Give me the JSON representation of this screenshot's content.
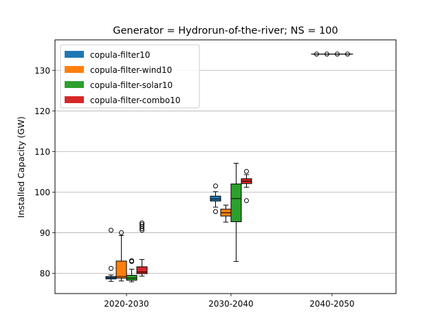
{
  "chart_data": {
    "type": "box",
    "title": "Generator = Hydrorun-of-the-river; NS = 100",
    "xlabel": "",
    "ylabel": "Installed Capacity (GW)",
    "ylim": [
      75,
      137.5
    ],
    "yticks": [
      80,
      90,
      100,
      110,
      120,
      130
    ],
    "grid": "horizontal",
    "legend_position": "top-left",
    "categories": [
      "2020-2030",
      "2030-2040",
      "2040-2050"
    ],
    "series": [
      {
        "name": "copula-filter10",
        "color": "#1f77b4",
        "boxes": [
          {
            "whisker_low": 78.0,
            "q1": 78.6,
            "median": 78.9,
            "q3": 79.2,
            "whisker_high": 79.6,
            "outliers": [
              81.2,
              90.6
            ]
          },
          {
            "whisker_low": 96.3,
            "q1": 97.8,
            "median": 98.3,
            "q3": 99.0,
            "whisker_high": 100.1,
            "outliers": [
              95.2,
              101.5
            ]
          },
          {
            "whisker_low": 134.0,
            "q1": 134.0,
            "median": 134.0,
            "q3": 134.0,
            "whisker_high": 134.0,
            "outliers": [
              134.0
            ]
          }
        ]
      },
      {
        "name": "copula-filter-wind10",
        "color": "#ff7f0e",
        "boxes": [
          {
            "whisker_low": 78.1,
            "q1": 78.8,
            "median": 79.2,
            "q3": 83.0,
            "whisker_high": 89.3,
            "outliers": [
              90.0
            ]
          },
          {
            "whisker_low": 92.6,
            "q1": 94.1,
            "median": 94.9,
            "q3": 95.8,
            "whisker_high": 96.8,
            "outliers": []
          },
          {
            "whisker_low": 134.0,
            "q1": 134.0,
            "median": 134.0,
            "q3": 134.0,
            "whisker_high": 134.0,
            "outliers": [
              134.0
            ]
          }
        ]
      },
      {
        "name": "copula-filter-solar10",
        "color": "#2ca02c",
        "boxes": [
          {
            "whisker_low": 77.9,
            "q1": 78.3,
            "median": 78.8,
            "q3": 79.5,
            "whisker_high": 81.0,
            "outliers": [
              82.9,
              83.1
            ]
          },
          {
            "whisker_low": 82.9,
            "q1": 92.7,
            "median": 98.4,
            "q3": 102.0,
            "whisker_high": 107.1,
            "outliers": []
          },
          {
            "whisker_low": 134.0,
            "q1": 134.0,
            "median": 134.0,
            "q3": 134.0,
            "whisker_high": 134.0,
            "outliers": [
              134.0
            ]
          }
        ]
      },
      {
        "name": "copula-filter-combo10",
        "color": "#d62728",
        "boxes": [
          {
            "whisker_low": 79.3,
            "q1": 79.9,
            "median": 80.3,
            "q3": 81.6,
            "whisker_high": 83.4,
            "outliers": [
              90.6,
              91.0,
              91.5,
              92.0,
              92.4
            ]
          },
          {
            "whisker_low": 101.2,
            "q1": 102.1,
            "median": 102.7,
            "q3": 103.3,
            "whisker_high": 104.3,
            "outliers": [
              97.9,
              105.1
            ]
          },
          {
            "whisker_low": 134.0,
            "q1": 134.0,
            "median": 134.0,
            "q3": 134.0,
            "whisker_high": 134.0,
            "outliers": [
              134.0
            ]
          }
        ]
      }
    ]
  }
}
